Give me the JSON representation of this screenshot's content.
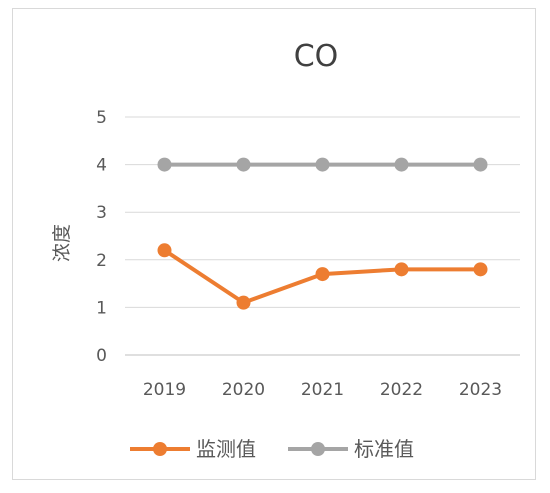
{
  "chart_data": {
    "type": "line",
    "title": "CO",
    "xlabel": "",
    "ylabel": "浓度",
    "categories": [
      "2019",
      "2020",
      "2021",
      "2022",
      "2023"
    ],
    "ylim": [
      0,
      5
    ],
    "yticks": [
      "0",
      "1",
      "2",
      "3",
      "4",
      "5"
    ],
    "grid": true,
    "legend": "bottom",
    "series": [
      {
        "name": "监测值",
        "color": "#ed7d31",
        "values": [
          2.2,
          1.1,
          1.7,
          1.8,
          1.8
        ]
      },
      {
        "name": "标准值",
        "color": "#a5a5a5",
        "values": [
          4,
          4,
          4,
          4,
          4
        ]
      }
    ]
  }
}
